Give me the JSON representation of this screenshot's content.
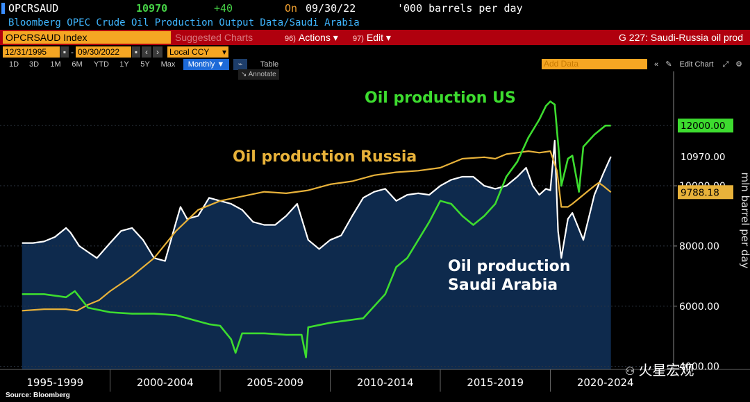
{
  "header": {
    "ticker": "OPCRSAUD",
    "price": "10970",
    "change": "+40",
    "on_label": "On",
    "date": "09/30/22",
    "units": "'000 barrels per day",
    "description": "Bloomberg OPEC Crude Oil Production Output Data/Saudi Arabia"
  },
  "toolbar": {
    "index_label": "OPCRSAUD Index",
    "suggested": "Suggested Charts",
    "actions_num": "96)",
    "actions": "Actions ▾",
    "edit_num": "97)",
    "edit": "Edit ▾",
    "chart_name": "G 227: Saudi-Russia oil prod",
    "start_date": "12/31/1995",
    "end_date": "09/30/2022",
    "currency": "Local CCY",
    "ranges": [
      "1D",
      "3D",
      "1M",
      "6M",
      "YTD",
      "1Y",
      "5Y",
      "Max"
    ],
    "frequency": "Monthly ▼",
    "table_label": "Table",
    "annotate_label": "Annotate",
    "add_data_placeholder": "Add Data",
    "edit_chart": "Edit Chart"
  },
  "colors": {
    "saudi": "#ffffff",
    "us": "#3ddc2f",
    "russia": "#e8b23a",
    "area": "#0e2a4d",
    "accent_red": "#b0000e",
    "accent_orange": "#f5a623"
  },
  "chart_data": {
    "type": "line",
    "ylabel": "mln barrel per day",
    "ylim": [
      3900,
      13800
    ],
    "yticks": [
      "4000.00",
      "6000.00",
      "8000.00",
      "10000.00"
    ],
    "x_periods": [
      "1995-1999",
      "2000-2004",
      "2005-2009",
      "2010-2014",
      "2015-2019",
      "2020-2024"
    ],
    "annotations": [
      "Oil production US",
      "Oil production Russia",
      "Oil production Saudi Arabia"
    ],
    "last_values": {
      "us": "12000.00",
      "saudi": "10970.00",
      "russia": "9788.18"
    },
    "series": [
      {
        "key": "saudi",
        "fill": true,
        "x": [
          1996.0,
          1996.5,
          1997.0,
          1997.5,
          1998.0,
          1998.2,
          1998.6,
          1999.0,
          1999.4,
          2000.0,
          2000.5,
          2001.0,
          2001.5,
          2002.0,
          2002.5,
          2003.0,
          2003.2,
          2003.5,
          2004.0,
          2004.5,
          2005.0,
          2005.5,
          2006.0,
          2006.5,
          2007.0,
          2007.5,
          2008.0,
          2008.5,
          2009.0,
          2009.5,
          2010.0,
          2010.5,
          2011.0,
          2011.5,
          2012.0,
          2012.5,
          2013.0,
          2013.5,
          2014.0,
          2014.5,
          2015.0,
          2015.5,
          2016.0,
          2016.5,
          2017.0,
          2017.5,
          2018.0,
          2018.5,
          2018.9,
          2019.2,
          2019.5,
          2019.8,
          2020.0,
          2020.2,
          2020.35,
          2020.5,
          2020.8,
          2021.0,
          2021.5,
          2022.0,
          2022.4,
          2022.75
        ],
        "y": [
          8100,
          8100,
          8150,
          8300,
          8600,
          8450,
          8000,
          7800,
          7600,
          8100,
          8500,
          8600,
          8200,
          7600,
          7500,
          8800,
          9300,
          8900,
          9000,
          9600,
          9500,
          9400,
          9200,
          8800,
          8700,
          8700,
          9000,
          9400,
          8200,
          7900,
          8200,
          8350,
          9000,
          9600,
          9800,
          9900,
          9500,
          9700,
          9750,
          9700,
          10000,
          10200,
          10300,
          10300,
          10000,
          9900,
          10000,
          10300,
          10600,
          10000,
          9700,
          9900,
          9850,
          11500,
          8500,
          7600,
          8900,
          9100,
          8200,
          9700,
          10400,
          10970
        ]
      },
      {
        "key": "us",
        "fill": false,
        "x": [
          1996.0,
          1997.0,
          1998.0,
          1998.4,
          1999.0,
          2000.0,
          2001.0,
          2002.0,
          2003.0,
          2004.0,
          2004.5,
          2005.0,
          2005.5,
          2005.7,
          2006.0,
          2007.0,
          2008.0,
          2008.7,
          2008.9,
          2009.0,
          2010.0,
          2011.0,
          2011.5,
          2012.0,
          2012.5,
          2013.0,
          2013.5,
          2014.0,
          2014.5,
          2015.0,
          2015.5,
          2016.0,
          2016.5,
          2017.0,
          2017.5,
          2018.0,
          2018.5,
          2019.0,
          2019.5,
          2019.8,
          2020.0,
          2020.2,
          2020.4,
          2020.5,
          2020.8,
          2021.0,
          2021.3,
          2021.5,
          2022.0,
          2022.5,
          2022.75
        ],
        "y": [
          6400,
          6400,
          6300,
          6500,
          5950,
          5800,
          5750,
          5750,
          5700,
          5500,
          5400,
          5350,
          4900,
          4450,
          5100,
          5100,
          5050,
          5050,
          4300,
          5300,
          5450,
          5550,
          5600,
          6000,
          6400,
          7300,
          7600,
          8200,
          8800,
          9500,
          9400,
          9000,
          8700,
          9000,
          9400,
          10300,
          10800,
          11600,
          12200,
          12650,
          12800,
          12700,
          11000,
          10000,
          10900,
          11000,
          9800,
          11300,
          11700,
          12000,
          12000
        ]
      },
      {
        "key": "russia",
        "fill": false,
        "x": [
          1996.0,
          1997.0,
          1998.0,
          1998.5,
          1999.0,
          1999.5,
          2000.0,
          2001.0,
          2002.0,
          2003.0,
          2004.0,
          2005.0,
          2006.0,
          2007.0,
          2008.0,
          2009.0,
          2010.0,
          2011.0,
          2012.0,
          2013.0,
          2014.0,
          2015.0,
          2016.0,
          2017.0,
          2017.5,
          2018.0,
          2018.5,
          2019.0,
          2019.5,
          2020.0,
          2020.3,
          2020.5,
          2020.8,
          2021.0,
          2021.5,
          2022.0,
          2022.2,
          2022.4,
          2022.75
        ],
        "y": [
          5850,
          5900,
          5900,
          5850,
          6050,
          6200,
          6500,
          7000,
          7600,
          8500,
          9200,
          9500,
          9650,
          9800,
          9750,
          9850,
          10050,
          10150,
          10350,
          10450,
          10500,
          10600,
          10900,
          10950,
          10900,
          11050,
          11100,
          11150,
          11100,
          11150,
          10500,
          9300,
          9300,
          9400,
          9700,
          10000,
          10100,
          10000,
          9788
        ]
      }
    ]
  },
  "watermark": "火星宏观",
  "source": "Source: Bloomberg"
}
